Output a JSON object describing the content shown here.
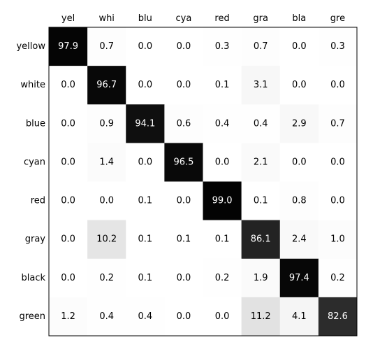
{
  "chart_data": {
    "type": "heatmap",
    "title": "",
    "xlabel": "",
    "ylabel": "",
    "x_labels": [
      "yel",
      "whi",
      "blu",
      "cya",
      "red",
      "gra",
      "bla",
      "gre"
    ],
    "y_labels": [
      "yellow",
      "white",
      "blue",
      "cyan",
      "red",
      "gray",
      "black",
      "green"
    ],
    "value_range": [
      0,
      100
    ],
    "colormap": "white-to-black",
    "values": [
      [
        97.9,
        0.7,
        0.0,
        0.0,
        0.3,
        0.7,
        0.0,
        0.3
      ],
      [
        0.0,
        96.7,
        0.0,
        0.0,
        0.1,
        3.1,
        0.0,
        0.0
      ],
      [
        0.0,
        0.9,
        94.1,
        0.6,
        0.4,
        0.4,
        2.9,
        0.7
      ],
      [
        0.0,
        1.4,
        0.0,
        96.5,
        0.0,
        2.1,
        0.0,
        0.0
      ],
      [
        0.0,
        0.0,
        0.1,
        0.0,
        99.0,
        0.1,
        0.8,
        0.0
      ],
      [
        0.0,
        10.2,
        0.1,
        0.1,
        0.1,
        86.1,
        2.4,
        1.0
      ],
      [
        0.0,
        0.2,
        0.1,
        0.0,
        0.2,
        1.9,
        97.4,
        0.2
      ],
      [
        1.2,
        0.4,
        0.4,
        0.0,
        0.0,
        11.2,
        4.1,
        82.6
      ]
    ],
    "colors": {
      "low": "#ffffff",
      "high": "#000000",
      "frame": "#000000",
      "text_dark": "#000000",
      "text_light": "#ffffff"
    }
  }
}
